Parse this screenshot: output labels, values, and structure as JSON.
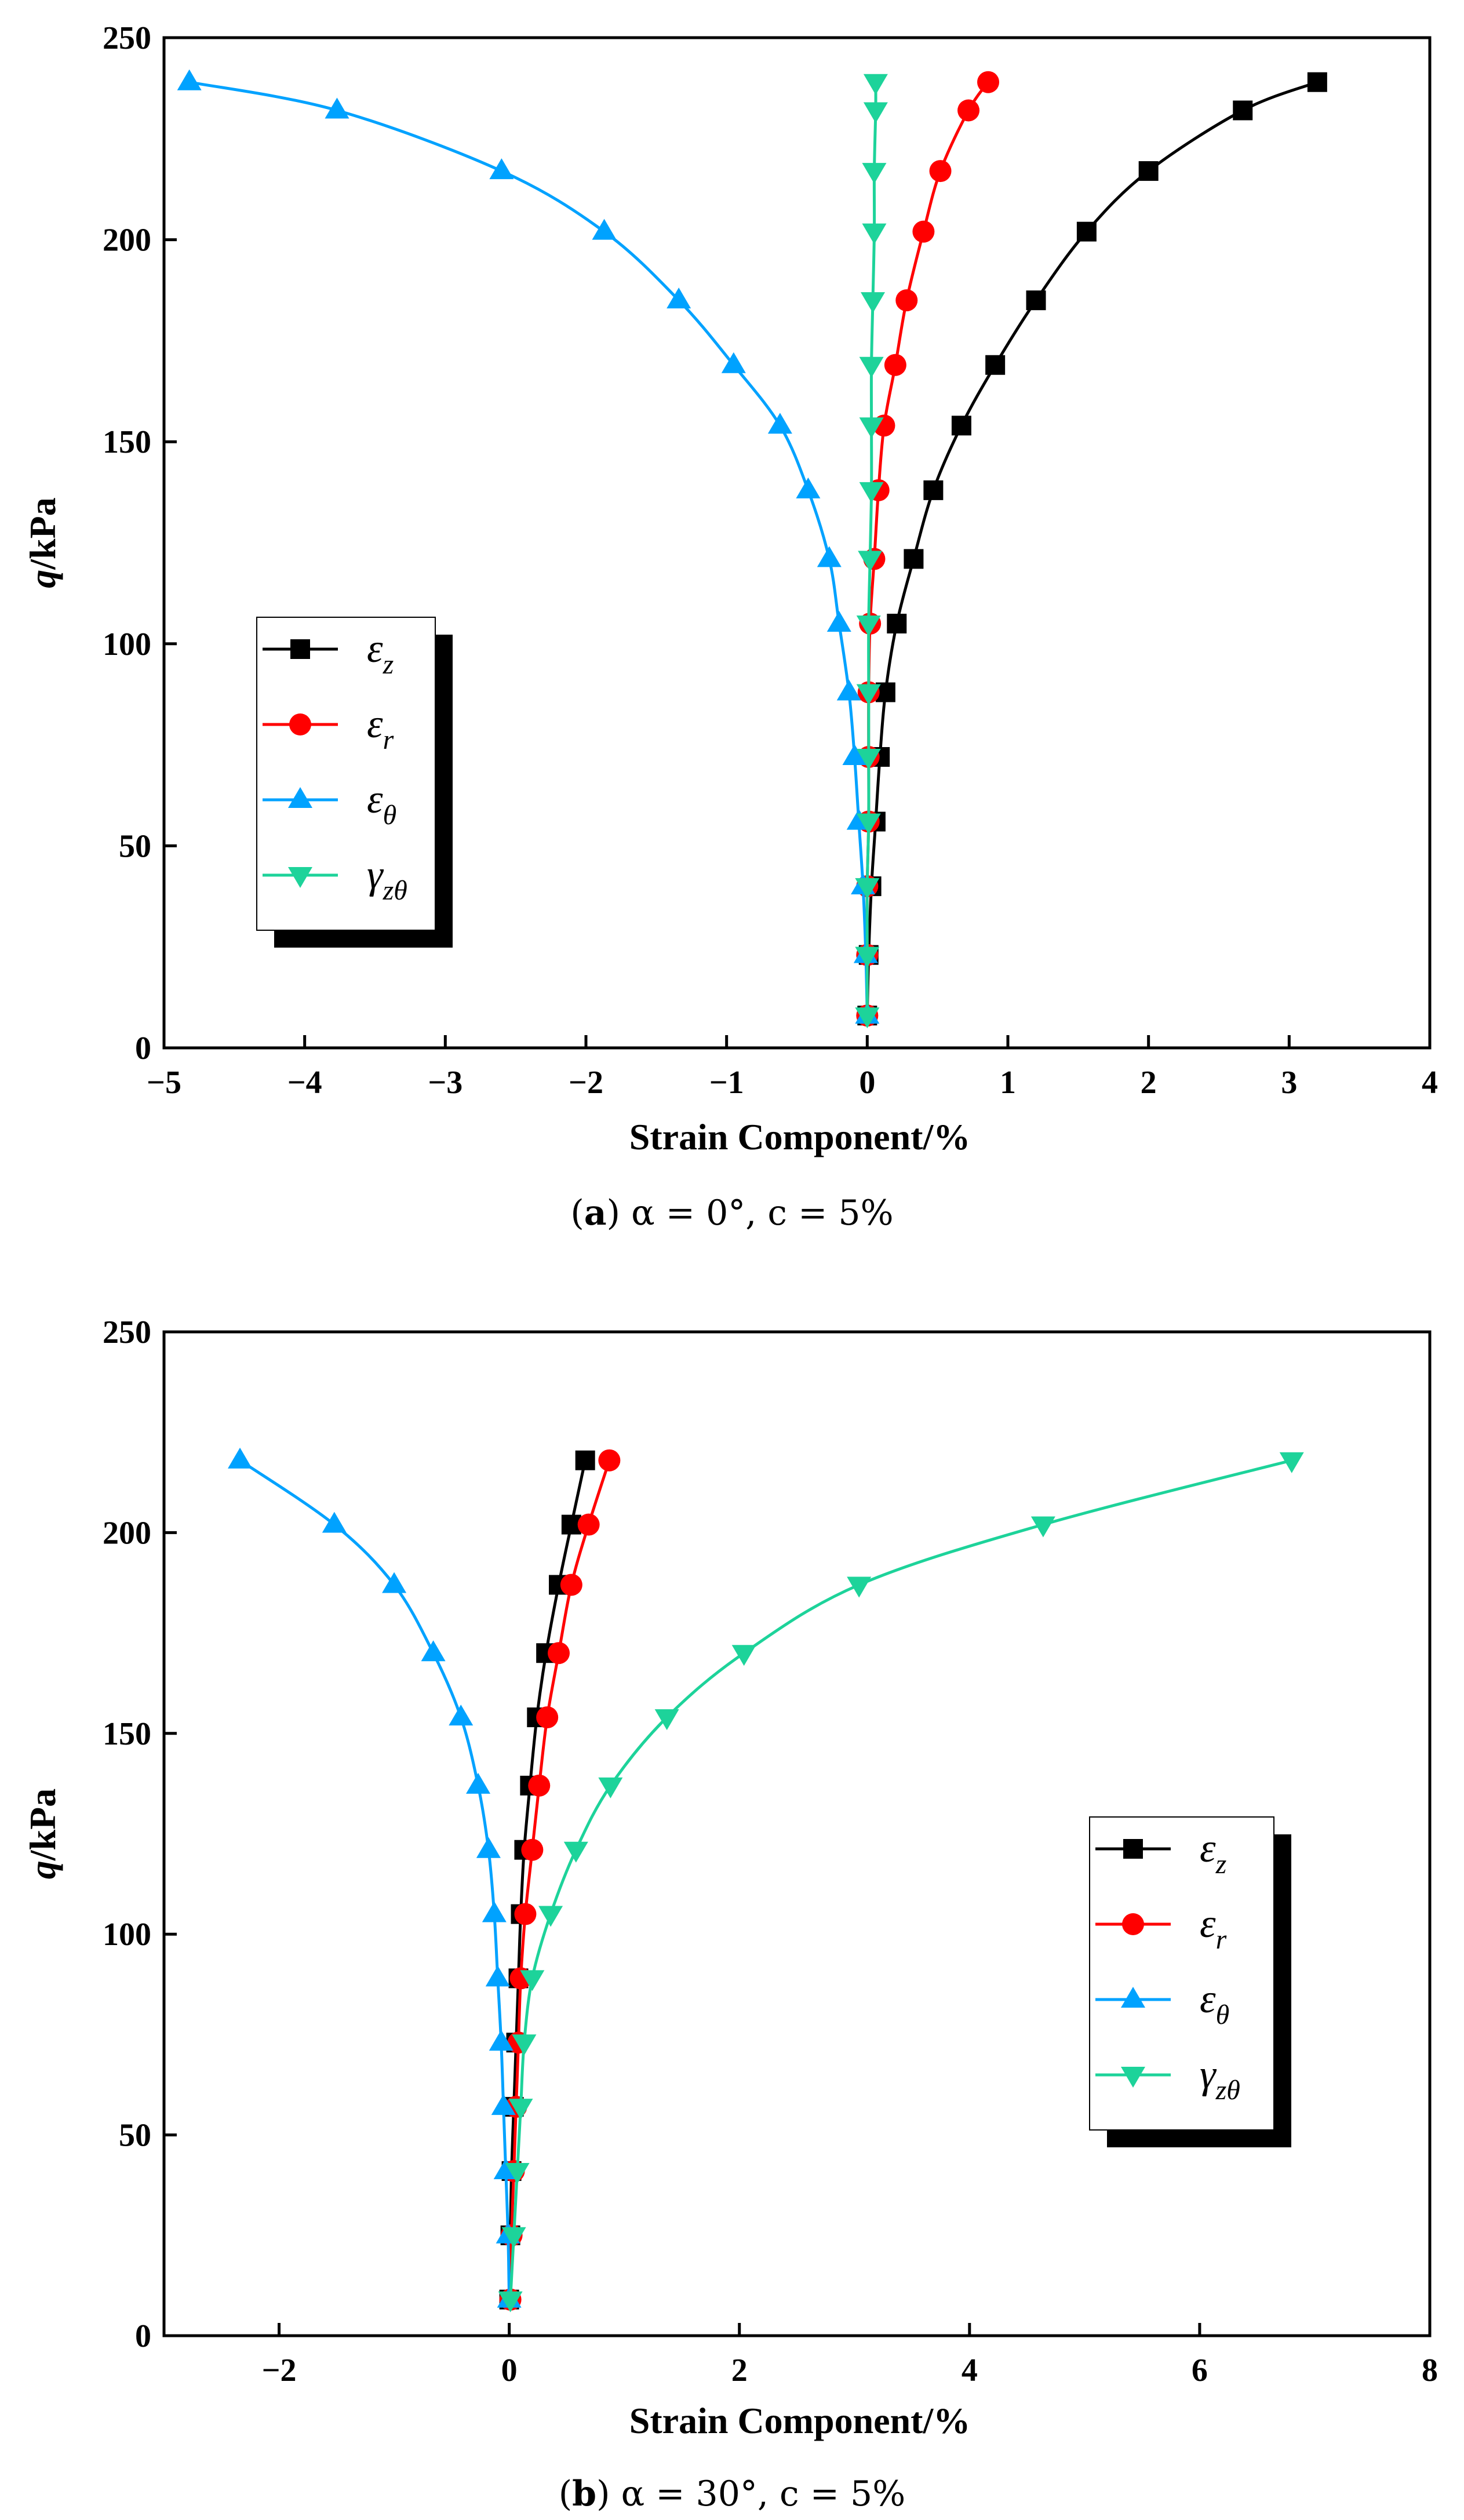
{
  "colors": {
    "ez": "#000000",
    "er": "#ff0000",
    "eth": "#00a2ff",
    "gzt": "#1dd39a"
  },
  "chart_data": [
    {
      "type": "line",
      "caption": {
        "label": "a",
        "text": " α = 0°, c = 5%"
      },
      "xlabel": "Strain Component/%",
      "ylabel": "q/kPa",
      "xlim": [
        -5,
        4
      ],
      "ylim": [
        0,
        250
      ],
      "xticks": [
        -5,
        -4,
        -3,
        -2,
        -1,
        0,
        1,
        2,
        3,
        4
      ],
      "yticks": [
        0,
        50,
        100,
        150,
        200,
        250
      ],
      "xtick_labels": [
        "−5",
        "−4",
        "−3",
        "−2",
        "−1",
        "0",
        "1",
        "2",
        "3",
        "4"
      ],
      "ytick_labels": [
        "0",
        "50",
        "100",
        "150",
        "200",
        "250"
      ],
      "legend_position": "center-left",
      "series": [
        {
          "name": "εz",
          "base": "ε",
          "sub": "z",
          "marker": "square",
          "color_key": "ez",
          "x": [
            0,
            0.01,
            0.03,
            0.06,
            0.09,
            0.13,
            0.21,
            0.33,
            0.47,
            0.67,
            0.91,
            1.2,
            1.56,
            2.0,
            2.67,
            3.2
          ],
          "y": [
            8,
            23,
            40,
            56,
            72,
            88,
            105,
            121,
            138,
            154,
            169,
            185,
            202,
            217,
            232,
            239
          ]
        },
        {
          "name": "εr",
          "base": "ε",
          "sub": "r",
          "marker": "circle",
          "color_key": "er",
          "x": [
            0,
            0,
            0,
            0.01,
            0.01,
            0.01,
            0.02,
            0.05,
            0.08,
            0.12,
            0.2,
            0.28,
            0.4,
            0.52,
            0.72,
            0.86
          ],
          "y": [
            8,
            23,
            40,
            56,
            72,
            88,
            105,
            121,
            138,
            154,
            169,
            185,
            202,
            217,
            232,
            239
          ]
        },
        {
          "name": "εθ",
          "base": "ε",
          "sub": "θ",
          "marker": "triangle-up",
          "color_key": "eth",
          "x": [
            0,
            -0.01,
            -0.03,
            -0.06,
            -0.09,
            -0.13,
            -0.2,
            -0.27,
            -0.42,
            -0.62,
            -0.95,
            -1.34,
            -1.87,
            -2.6,
            -3.77,
            -4.82
          ],
          "y": [
            8,
            23,
            40,
            56,
            72,
            88,
            105,
            121,
            138,
            154,
            169,
            185,
            202,
            217,
            232,
            239
          ]
        },
        {
          "name": "γzθ",
          "base": "γ",
          "sub": "zθ",
          "marker": "triangle-down",
          "color_key": "gzt",
          "x": [
            0,
            0,
            0,
            0.01,
            0.01,
            0.01,
            0.01,
            0.02,
            0.03,
            0.03,
            0.03,
            0.04,
            0.05,
            0.05,
            0.06,
            0.06
          ],
          "y": [
            8,
            23,
            40,
            56,
            72,
            88,
            105,
            121,
            138,
            154,
            169,
            185,
            202,
            217,
            232,
            239
          ]
        }
      ]
    },
    {
      "type": "line",
      "caption": {
        "label": "b",
        "text": " α = 30°, c = 5%"
      },
      "xlabel": "Strain Component/%",
      "ylabel": "q/kPa",
      "xlim": [
        -3,
        8
      ],
      "ylim": [
        0,
        250
      ],
      "xticks": [
        -2,
        0,
        2,
        4,
        6,
        8
      ],
      "yticks": [
        0,
        50,
        100,
        150,
        200,
        250
      ],
      "xtick_labels": [
        "−2",
        "0",
        "2",
        "4",
        "6",
        "8"
      ],
      "ytick_labels": [
        "0",
        "50",
        "100",
        "150",
        "200",
        "250"
      ],
      "legend_position": "center-right",
      "series": [
        {
          "name": "εz",
          "base": "ε",
          "sub": "z",
          "marker": "square",
          "color_key": "ez",
          "x": [
            0,
            0.01,
            0.02,
            0.04,
            0.06,
            0.08,
            0.1,
            0.13,
            0.18,
            0.24,
            0.32,
            0.43,
            0.54,
            0.66
          ],
          "y": [
            9,
            25,
            41,
            57,
            73,
            89,
            105,
            121,
            137,
            154,
            170,
            187,
            202,
            218
          ]
        },
        {
          "name": "εr",
          "base": "ε",
          "sub": "r",
          "marker": "circle",
          "color_key": "er",
          "x": [
            0.01,
            0.02,
            0.04,
            0.06,
            0.08,
            0.1,
            0.14,
            0.2,
            0.26,
            0.33,
            0.43,
            0.54,
            0.69,
            0.87
          ],
          "y": [
            9,
            25,
            41,
            57,
            73,
            89,
            105,
            121,
            137,
            154,
            170,
            187,
            202,
            218
          ]
        },
        {
          "name": "εθ",
          "base": "ε",
          "sub": "θ",
          "marker": "triangle-up",
          "color_key": "eth",
          "x": [
            0,
            -0.01,
            -0.03,
            -0.05,
            -0.07,
            -0.1,
            -0.13,
            -0.18,
            -0.27,
            -0.42,
            -0.66,
            -1.0,
            -1.52,
            -2.34
          ],
          "y": [
            9,
            25,
            41,
            57,
            73,
            89,
            105,
            121,
            137,
            154,
            170,
            187,
            202,
            218
          ]
        },
        {
          "name": "γzθ",
          "base": "γ",
          "sub": "zθ",
          "marker": "triangle-down",
          "color_key": "gzt",
          "x": [
            0.01,
            0.04,
            0.07,
            0.1,
            0.13,
            0.2,
            0.36,
            0.58,
            0.88,
            1.37,
            2.04,
            3.04,
            4.64,
            6.8
          ],
          "y": [
            9,
            25,
            41,
            57,
            73,
            89,
            105,
            121,
            137,
            154,
            170,
            187,
            202,
            218
          ]
        }
      ]
    }
  ]
}
